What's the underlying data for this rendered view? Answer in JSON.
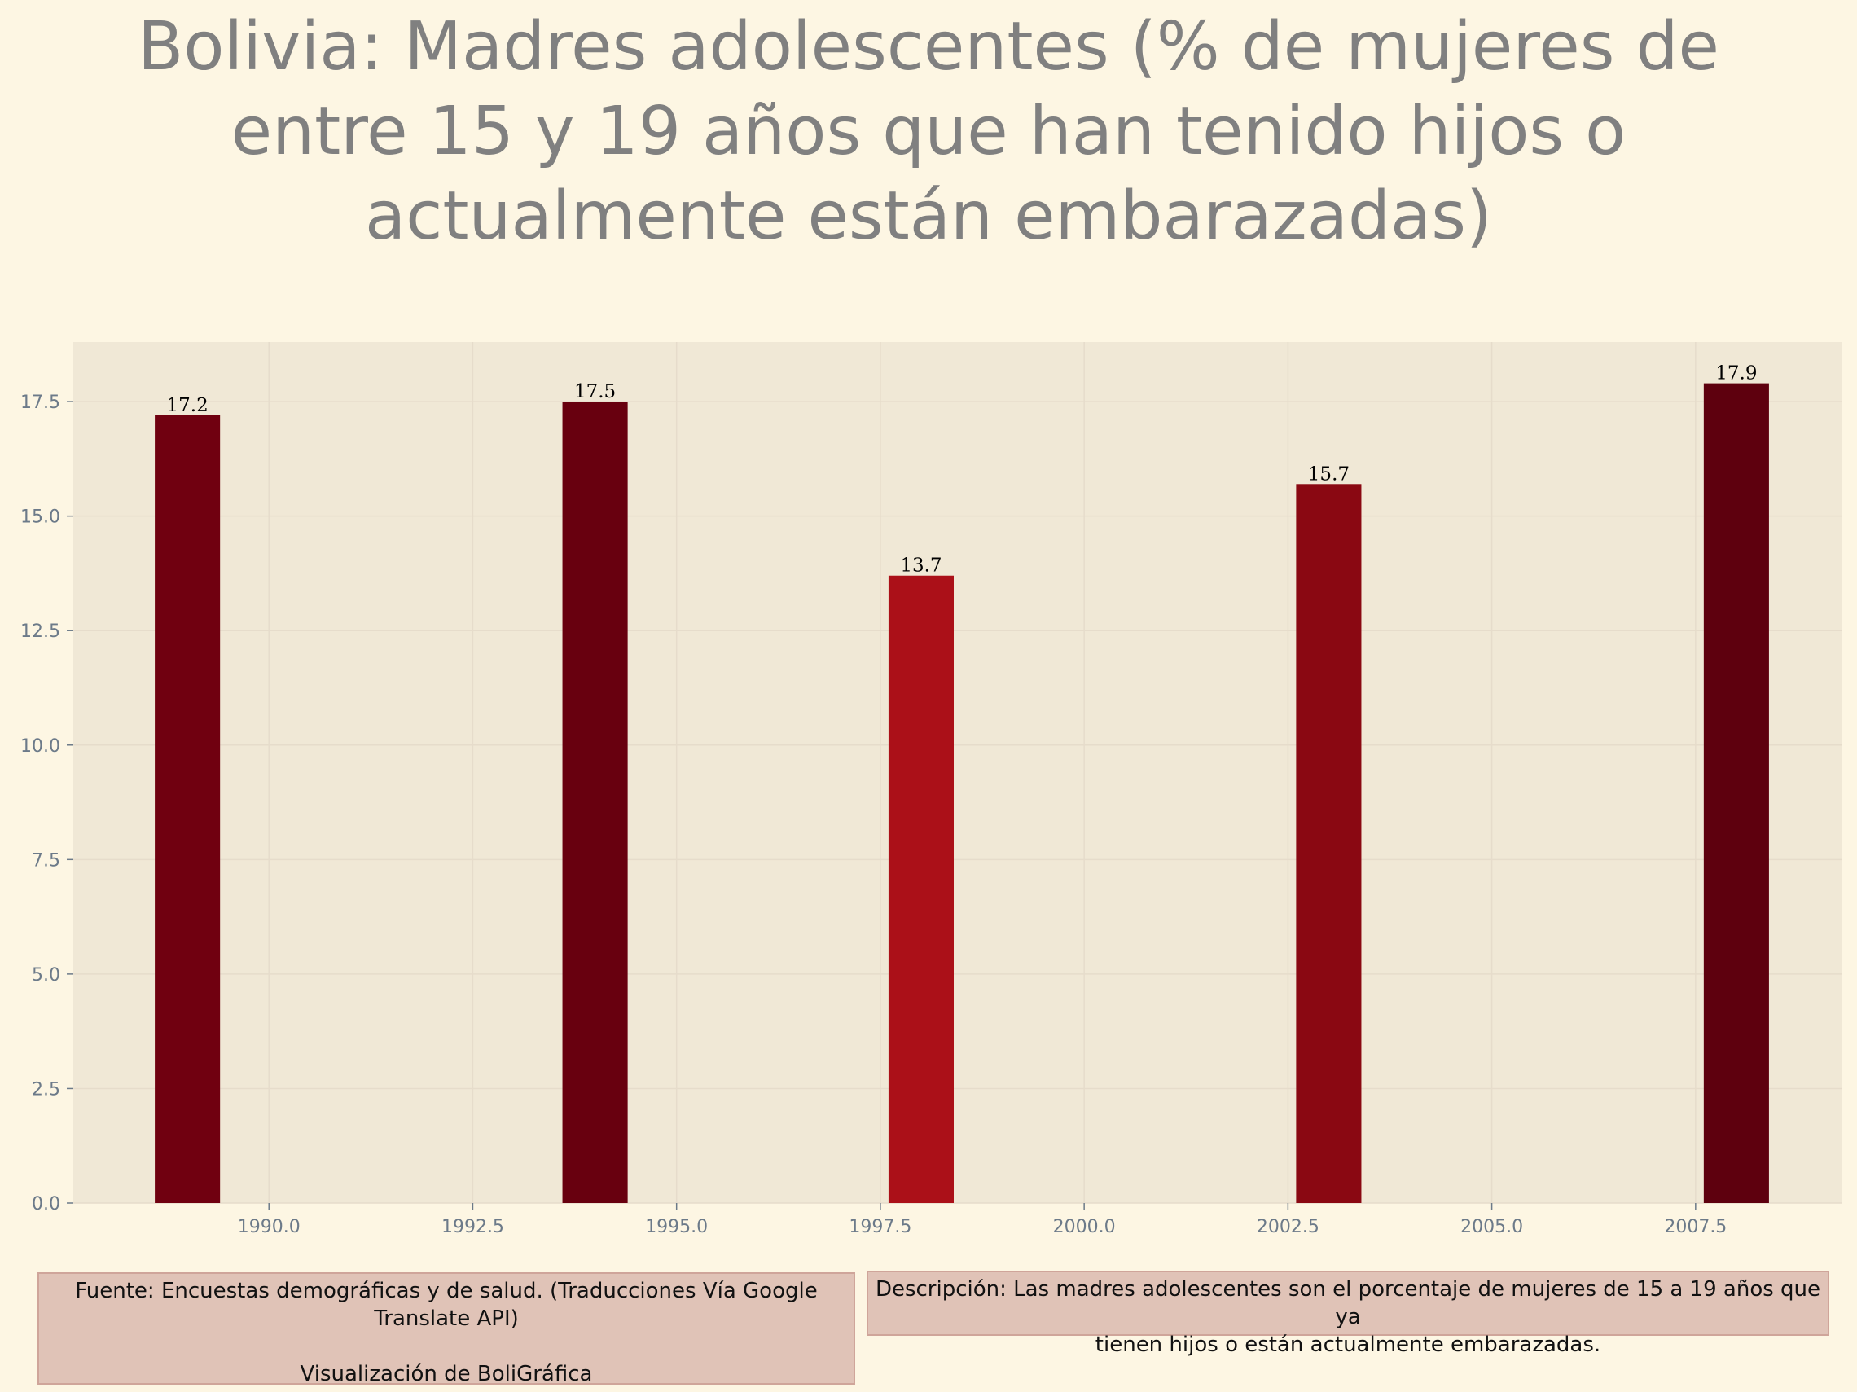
{
  "page": {
    "background": "#fdf6e3"
  },
  "chart_data": {
    "type": "bar",
    "title": "Bolivia:  Madres adolescentes (% de mujeres de\nentre 15 y 19 años que han tenido hijos o\nactualmente están embarazadas)",
    "xlabel": "",
    "ylabel": "",
    "x": [
      1989,
      1994,
      1998,
      2003,
      2008
    ],
    "values": [
      17.2,
      17.5,
      13.7,
      15.7,
      17.9
    ],
    "data_labels": [
      "17.2",
      "17.5",
      "13.7",
      "15.7",
      "17.9"
    ],
    "bar_colors": [
      "#700010",
      "#68000f",
      "#ab1018",
      "#8a0812",
      "#5e000e"
    ],
    "bar_width_years": 0.8,
    "xlim": [
      1987.6,
      2009.3
    ],
    "ylim": [
      0,
      18.8
    ],
    "xticks": [
      1990.0,
      1992.5,
      1995.0,
      1997.5,
      2000.0,
      2002.5,
      2005.0,
      2007.5
    ],
    "xtick_labels": [
      "1990.0",
      "1992.5",
      "1995.0",
      "1997.5",
      "2000.0",
      "2002.5",
      "2005.0",
      "2007.5"
    ],
    "yticks": [
      0,
      2.5,
      5,
      7.5,
      10,
      12.5,
      15,
      17.5
    ],
    "ytick_labels": [
      "0.0",
      "2.5",
      "5.0",
      "7.5",
      "10.0",
      "12.5",
      "15.0",
      "17.5"
    ],
    "grid": true,
    "plot_background": "#f0e8d6",
    "tick_color": "#6c7a89",
    "title_color": "#808080"
  },
  "footer": {
    "source_text": "Fuente: Encuestas demográficas y de salud. (Traducciones Vía Google\nTranslate API)\n\nVisualización de BoliGráfica",
    "description_text": "Descripción: Las madres adolescentes son el porcentaje de mujeres de 15 a 19 años que ya\ntienen hijos o están actualmente embarazadas.",
    "box_color": "#e0c3b7"
  }
}
